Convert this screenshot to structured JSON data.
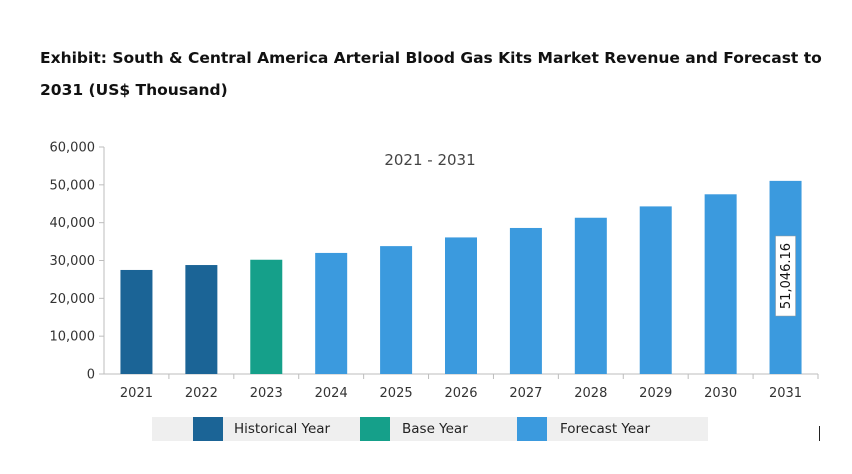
{
  "title": "Exhibit: South & Central America Arterial Blood Gas Kits Market Revenue and Forecast to 2031 (US$ Thousand)",
  "chart_data": {
    "type": "bar",
    "title": "Exhibit: South & Central America Arterial Blood Gas Kits Market Revenue and Forecast to 2031 (US$ Thousand)",
    "subtitle": "2021 - 2031",
    "categories": [
      "2021",
      "2022",
      "2023",
      "2024",
      "2025",
      "2026",
      "2027",
      "2028",
      "2029",
      "2030",
      "2031"
    ],
    "values": [
      27500,
      28800,
      30200,
      32000,
      33800,
      36100,
      38600,
      41300,
      44300,
      47500,
      51046.16
    ],
    "groups": [
      "Historical Year",
      "Historical Year",
      "Base Year",
      "Forecast Year",
      "Forecast Year",
      "Forecast Year",
      "Forecast Year",
      "Forecast Year",
      "Forecast Year",
      "Forecast Year",
      "Forecast Year"
    ],
    "ylim": [
      0,
      60000
    ],
    "yticks": [
      "0",
      "10,000",
      "20,000",
      "30,000",
      "40,000",
      "50,000",
      "60,000"
    ],
    "ytick_values": [
      0,
      10000,
      20000,
      30000,
      40000,
      50000,
      60000
    ],
    "data_label": {
      "category": "2031",
      "text": "51,046.16"
    },
    "xlabel": "",
    "ylabel": "",
    "grid": false,
    "legend_position": "bottom"
  },
  "legend": [
    {
      "label": "Historical Year",
      "color": "#1b6496"
    },
    {
      "label": "Base Year",
      "color": "#15a08a"
    },
    {
      "label": "Forecast Year",
      "color": "#3b9ade"
    }
  ]
}
